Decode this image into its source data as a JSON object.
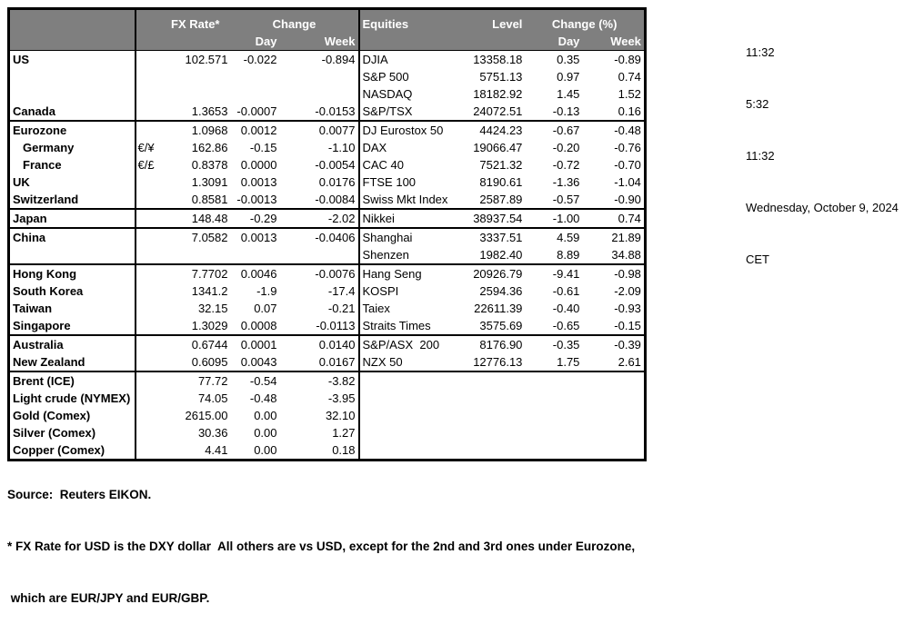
{
  "colors": {
    "header_bg": "#7f7f7f",
    "header_text": "#ffffff",
    "border": "#000000",
    "text": "#000000"
  },
  "header": {
    "fx_rate": "FX Rate*",
    "change": "Change",
    "day": "Day",
    "week": "Week",
    "equities": "Equities",
    "level": "Level",
    "change_pct": "Change (%)"
  },
  "timestamps": [
    "11:32",
    "5:32",
    "11:32",
    "Wednesday, October 9, 2024",
    "CET"
  ],
  "footnotes": {
    "source": "Source:  Reuters EIKON.",
    "note1": "* FX Rate for USD is the DXY dollar  All others are vs USD, except for the 2nd and 3rd ones under Eurozone,",
    "note2": " which are EUR/JPY and EUR/GBP."
  },
  "table": {
    "rows": [
      {
        "label": "US",
        "indent": false,
        "section": false,
        "pair": "",
        "fx": "102.571",
        "day": "-0.022",
        "week": "-0.894",
        "equity": "DJIA",
        "level": "13358.18",
        "eday": "0.35",
        "eweek": "-0.89"
      },
      {
        "label": "",
        "indent": false,
        "section": false,
        "pair": "",
        "fx": "",
        "day": "",
        "week": "",
        "equity": "S&P 500",
        "level": "5751.13",
        "eday": "0.97",
        "eweek": "0.74"
      },
      {
        "label": "",
        "indent": false,
        "section": false,
        "pair": "",
        "fx": "",
        "day": "",
        "week": "",
        "equity": "NASDAQ",
        "level": "18182.92",
        "eday": "1.45",
        "eweek": "1.52"
      },
      {
        "label": "Canada",
        "indent": false,
        "section": false,
        "pair": "",
        "fx": "1.3653",
        "day": "-0.0007",
        "week": "-0.0153",
        "equity": "S&P/TSX",
        "level": "24072.51",
        "eday": "-0.13",
        "eweek": "0.16"
      },
      {
        "label": "Eurozone",
        "indent": false,
        "section": true,
        "pair": "",
        "fx": "1.0968",
        "day": "0.0012",
        "week": "0.0077",
        "equity": "DJ Eurostox 50",
        "level": "4424.23",
        "eday": "-0.67",
        "eweek": "-0.48"
      },
      {
        "label": "Germany",
        "indent": true,
        "section": false,
        "pair": "€/¥",
        "fx": "162.86",
        "day": "-0.15",
        "week": "-1.10",
        "equity": "DAX",
        "level": "19066.47",
        "eday": "-0.20",
        "eweek": "-0.76"
      },
      {
        "label": "France",
        "indent": true,
        "section": false,
        "pair": "€/£",
        "fx": "0.8378",
        "day": "0.0000",
        "week": "-0.0054",
        "equity": "CAC 40",
        "level": "7521.32",
        "eday": "-0.72",
        "eweek": "-0.70"
      },
      {
        "label": "UK",
        "indent": false,
        "section": false,
        "pair": "",
        "fx": "1.3091",
        "day": "0.0013",
        "week": "0.0176",
        "equity": "FTSE 100",
        "level": "8190.61",
        "eday": "-1.36",
        "eweek": "-1.04"
      },
      {
        "label": "Switzerland",
        "indent": false,
        "section": false,
        "pair": "",
        "fx": "0.8581",
        "day": "-0.0013",
        "week": "-0.0084",
        "equity": "Swiss Mkt Index",
        "level": "2587.89",
        "eday": "-0.57",
        "eweek": "-0.90"
      },
      {
        "label": "Japan",
        "indent": false,
        "section": true,
        "pair": "",
        "fx": "148.48",
        "day": "-0.29",
        "week": "-2.02",
        "equity": "Nikkei",
        "level": "38937.54",
        "eday": "-1.00",
        "eweek": "0.74"
      },
      {
        "label": "China",
        "indent": false,
        "section": true,
        "pair": "",
        "fx": "7.0582",
        "day": "0.0013",
        "week": "-0.0406",
        "equity": "Shanghai",
        "level": "3337.51",
        "eday": "4.59",
        "eweek": "21.89"
      },
      {
        "label": "",
        "indent": false,
        "section": false,
        "pair": "",
        "fx": "",
        "day": "",
        "week": "",
        "equity": "Shenzen",
        "level": "1982.40",
        "eday": "8.89",
        "eweek": "34.88"
      },
      {
        "label": "Hong Kong",
        "indent": false,
        "section": true,
        "pair": "",
        "fx": "7.7702",
        "day": "0.0046",
        "week": "-0.0076",
        "equity": "Hang Seng",
        "level": "20926.79",
        "eday": "-9.41",
        "eweek": "-0.98"
      },
      {
        "label": "South Korea",
        "indent": false,
        "section": false,
        "pair": "",
        "fx": "1341.2",
        "day": "-1.9",
        "week": "-17.4",
        "equity": "KOSPI",
        "level": "2594.36",
        "eday": "-0.61",
        "eweek": "-2.09"
      },
      {
        "label": "Taiwan",
        "indent": false,
        "section": false,
        "pair": "",
        "fx": "32.15",
        "day": "0.07",
        "week": "-0.21",
        "equity": "Taiex",
        "level": "22611.39",
        "eday": "-0.40",
        "eweek": "-0.93"
      },
      {
        "label": "Singapore",
        "indent": false,
        "section": false,
        "pair": "",
        "fx": "1.3029",
        "day": "0.0008",
        "week": "-0.0113",
        "equity": "Straits Times",
        "level": "3575.69",
        "eday": "-0.65",
        "eweek": "-0.15"
      },
      {
        "label": "Australia",
        "indent": false,
        "section": true,
        "pair": "",
        "fx": "0.6744",
        "day": "0.0001",
        "week": "0.0140",
        "equity": "S&P/ASX  200",
        "level": "8176.90",
        "eday": "-0.35",
        "eweek": "-0.39"
      },
      {
        "label": "New Zealand",
        "indent": false,
        "section": false,
        "pair": "",
        "fx": "0.6095",
        "day": "0.0043",
        "week": "0.0167",
        "equity": "NZX 50",
        "level": "12776.13",
        "eday": "1.75",
        "eweek": "2.61"
      },
      {
        "label": "Brent (ICE)",
        "indent": false,
        "section": true,
        "pair": "",
        "fx": "77.72",
        "day": "-0.54",
        "week": "-3.82",
        "equity": "",
        "level": "",
        "eday": "",
        "eweek": ""
      },
      {
        "label": "Light crude (NYMEX)",
        "indent": false,
        "section": false,
        "pair": "",
        "fx": "74.05",
        "day": "-0.48",
        "week": "-3.95",
        "equity": "",
        "level": "",
        "eday": "",
        "eweek": ""
      },
      {
        "label": "Gold (Comex)",
        "indent": false,
        "section": false,
        "pair": "",
        "fx": "2615.00",
        "day": "0.00",
        "week": "32.10",
        "equity": "",
        "level": "",
        "eday": "",
        "eweek": ""
      },
      {
        "label": "Silver (Comex)",
        "indent": false,
        "section": false,
        "pair": "",
        "fx": "30.36",
        "day": "0.00",
        "week": "1.27",
        "equity": "",
        "level": "",
        "eday": "",
        "eweek": ""
      },
      {
        "label": "Copper (Comex)",
        "indent": false,
        "section": false,
        "pair": "",
        "fx": "4.41",
        "day": "0.00",
        "week": "0.18",
        "equity": "",
        "level": "",
        "eday": "",
        "eweek": ""
      }
    ]
  }
}
